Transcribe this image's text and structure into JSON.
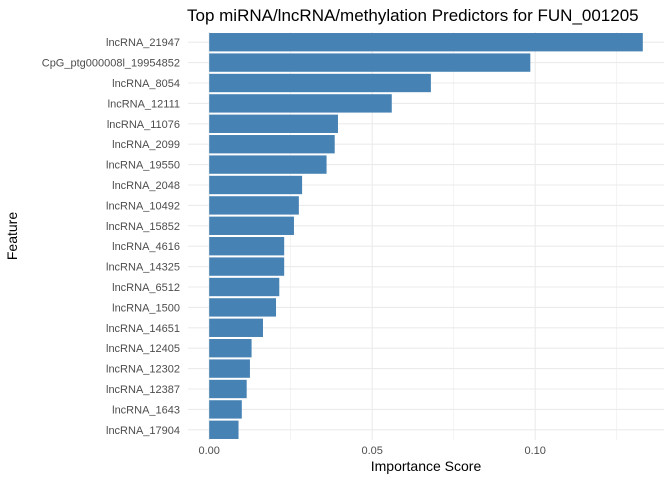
{
  "chart_data": {
    "type": "bar",
    "orientation": "horizontal",
    "title": "Top miRNA/lncRNA/methylation Predictors for FUN_001205",
    "xlabel": "Importance Score",
    "ylabel": "Feature",
    "categories": [
      "lncRNA_21947",
      "CpG_ptg000008l_19954852",
      "lncRNA_8054",
      "lncRNA_12111",
      "lncRNA_11076",
      "lncRNA_2099",
      "lncRNA_19550",
      "lncRNA_2048",
      "lncRNA_10492",
      "lncRNA_15852",
      "lncRNA_4616",
      "lncRNA_14325",
      "lncRNA_6512",
      "lncRNA_1500",
      "lncRNA_14651",
      "lncRNA_12405",
      "lncRNA_12302",
      "lncRNA_12387",
      "lncRNA_1643",
      "lncRNA_17904"
    ],
    "values": [
      0.133,
      0.0985,
      0.068,
      0.056,
      0.0395,
      0.0385,
      0.036,
      0.0285,
      0.0275,
      0.026,
      0.023,
      0.023,
      0.0215,
      0.0205,
      0.0165,
      0.013,
      0.0125,
      0.0115,
      0.01,
      0.009
    ],
    "xlim": [
      -0.0065,
      0.1395
    ],
    "x_ticks": [
      0.0,
      0.05,
      0.1
    ],
    "x_tick_labels": [
      "0.00",
      "0.05",
      "0.10"
    ],
    "grid": true,
    "bar_color": "#4682b4",
    "grid_color": "#ebebeb"
  }
}
